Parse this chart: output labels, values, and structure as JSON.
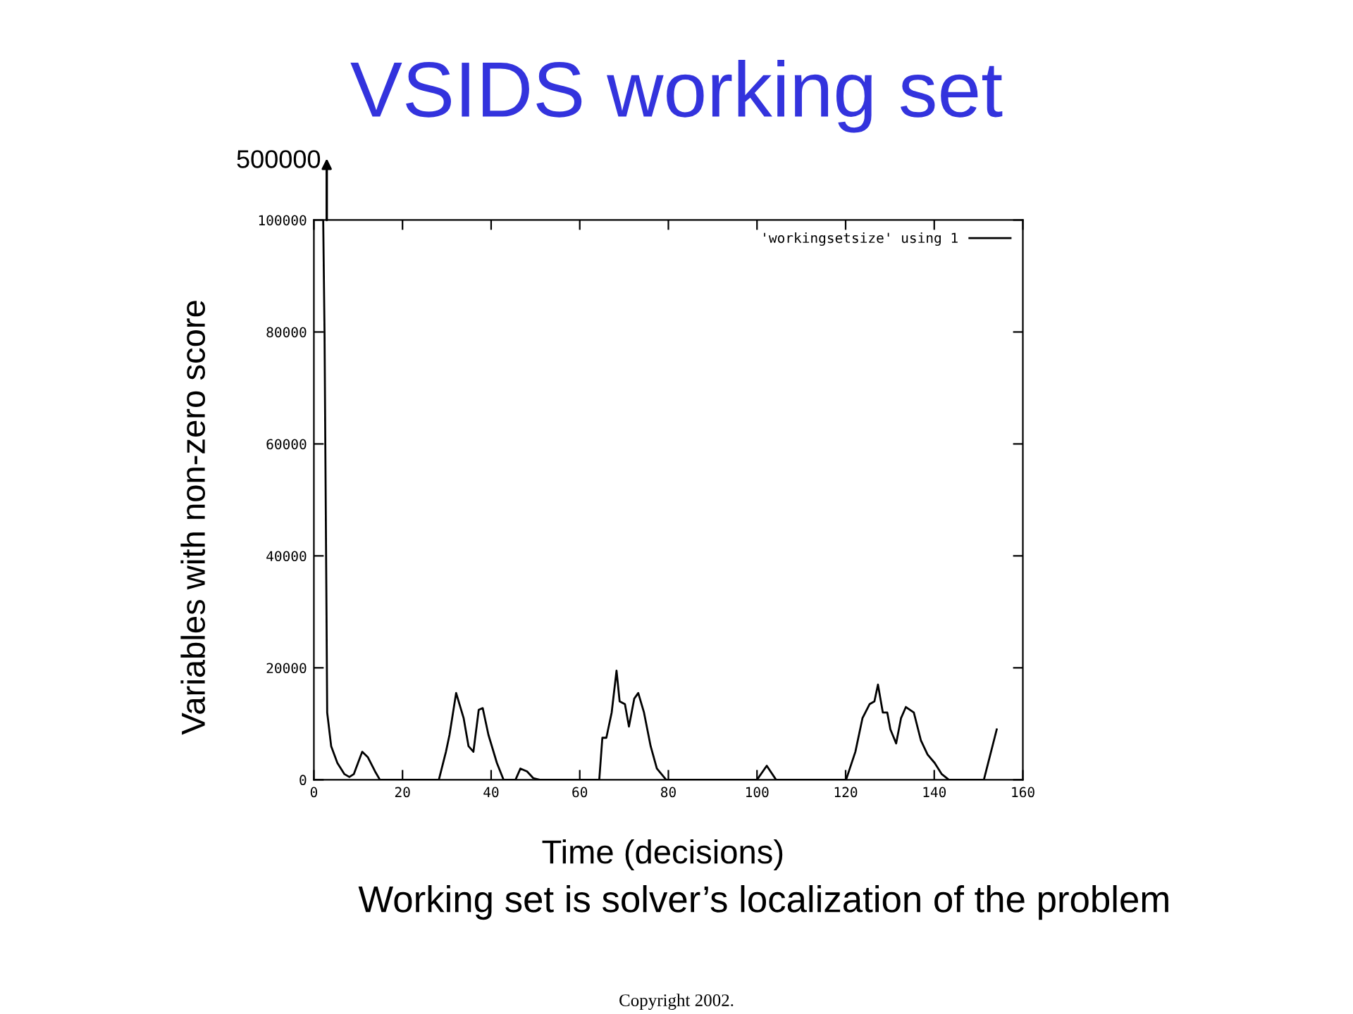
{
  "chart_data": {
    "type": "line",
    "title": "VSIDS working set",
    "xlabel": "Time (decisions)",
    "ylabel": "Variables with non-zero score",
    "annotations": [
      "500000",
      "Working set is solver’s localization of the problem",
      "Copyright 2002."
    ],
    "series": [
      {
        "name": "'workingsetsize' using 1",
        "color": "#000000",
        "x": [
          2.1,
          2.4,
          2.8,
          3.0,
          3.9,
          5.3,
          6.9,
          8.0,
          9.0,
          10.9,
          12.2,
          13.8,
          14.9,
          16.5,
          28.2,
          29.8,
          30.6,
          32.1,
          33.8,
          34.9,
          36.0,
          37.2,
          38.1,
          39.4,
          41.3,
          42.8,
          45.5,
          46.6,
          48.1,
          49.5,
          51.0,
          64.4,
          65.1,
          66.0,
          67.2,
          68.3,
          69.0,
          70.2,
          71.1,
          72.3,
          73.2,
          74.5,
          76.0,
          77.4,
          79.5,
          100.0,
          102.2,
          104.3,
          120.1,
          122.2,
          123.8,
          125.4,
          126.5,
          127.3,
          128.4,
          129.4,
          130.1,
          131.4,
          132.5,
          133.6,
          135.4,
          137.0,
          138.5,
          140.1,
          141.7,
          143.3,
          151.2,
          154.1
        ],
        "values": [
          100000,
          80000,
          35000,
          12000,
          6000,
          3000,
          1000,
          500,
          1000,
          5000,
          4000,
          1500,
          0,
          0,
          0,
          5000,
          8000,
          15500,
          11000,
          6000,
          5000,
          12500,
          12800,
          8000,
          3000,
          0,
          0,
          2000,
          1500,
          300,
          0,
          0,
          7500,
          7500,
          12000,
          19500,
          14000,
          13500,
          9500,
          14500,
          15500,
          12000,
          6000,
          2000,
          0,
          0,
          2500,
          0,
          0,
          5000,
          11000,
          13500,
          14000,
          17000,
          12000,
          12000,
          9000,
          6500,
          11000,
          13000,
          12000,
          7000,
          4500,
          3000,
          1000,
          0,
          0,
          9000
        ]
      }
    ],
    "xlim": [
      0,
      160
    ],
    "ylim": [
      0,
      100000
    ],
    "xticks": [
      0,
      20,
      40,
      60,
      80,
      100,
      120,
      140,
      160
    ],
    "yticks": [
      0,
      20000,
      40000,
      60000,
      80000,
      100000
    ],
    "legend": "top right"
  }
}
